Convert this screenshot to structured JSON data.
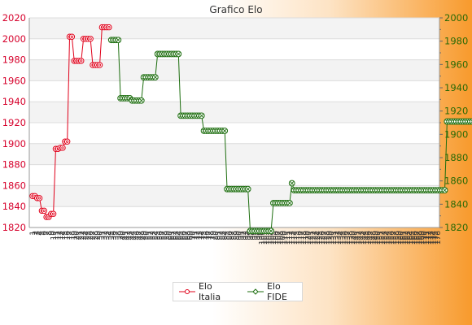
{
  "chart_data": {
    "type": "line",
    "title": "Grafico Elo",
    "y_left": {
      "min": 1820,
      "max": 2020,
      "step": 20
    },
    "y_right": {
      "min": 1820,
      "max": 2000,
      "step": 20
    },
    "x_labels": [
      "1",
      "2",
      "3",
      "4",
      "5",
      "6",
      "7",
      "8",
      "9",
      "10",
      "11",
      "12",
      "13",
      "14",
      "15",
      "16",
      "17",
      "18",
      "19",
      "20",
      "21",
      "22",
      "23",
      "24",
      "25",
      "26",
      "27",
      "28",
      "29",
      "30",
      "31",
      "32",
      "33",
      "34",
      "35",
      "36",
      "37",
      "38",
      "39",
      "40",
      "41",
      "42",
      "43",
      "44",
      "45",
      "46",
      "47",
      "48",
      "49",
      "50",
      "51",
      "52",
      "53",
      "54",
      "55",
      "56",
      "57",
      "58",
      "59",
      "60",
      "61",
      "62",
      "63",
      "64",
      "65",
      "66",
      "67",
      "68",
      "69",
      "70",
      "71",
      "72",
      "73",
      "74",
      "75",
      "76",
      "77",
      "78",
      "79",
      "80",
      "81",
      "82",
      "83",
      "84",
      "85",
      "86",
      "87",
      "88",
      "89",
      "90",
      "91",
      "92",
      "93",
      "94",
      "95",
      "96",
      "97",
      "98",
      "99",
      "100",
      "101",
      "102",
      "103",
      "104",
      "105",
      "106",
      "107",
      "108",
      "109",
      "110",
      "111",
      "112",
      "113",
      "114",
      "115",
      "116",
      "117",
      "118",
      "119",
      "120",
      "121",
      "122",
      "123",
      "124",
      "125",
      "126",
      "127",
      "128",
      "129",
      "130",
      "131",
      "132",
      "133",
      "134",
      "135",
      "136",
      "137",
      "138",
      "139",
      "140",
      "141",
      "142",
      "143",
      "144",
      "145",
      "146",
      "147",
      "148",
      "149",
      "150",
      "151",
      "152",
      "153",
      "154",
      "155",
      "156",
      "157",
      "158",
      "159",
      "160",
      "161",
      "162",
      "163",
      "164",
      "165",
      "166",
      "167",
      "168",
      "169",
      "170",
      "171",
      "172",
      "173",
      "174",
      "175",
      "176"
    ],
    "grid": true,
    "legend": {
      "position": "bottom"
    },
    "series": [
      {
        "name": "Elo Italia",
        "axis": "left",
        "color": "#e0001a",
        "marker": "circle",
        "values": [
          1850,
          1850,
          1848,
          1848,
          1836,
          1836,
          1830,
          1830,
          1833,
          1833,
          1895,
          1895,
          1896,
          1896,
          1902,
          1902,
          2002,
          2002,
          1979,
          1979,
          1979,
          1979,
          2000,
          2000,
          2000,
          2000,
          1975,
          1975,
          1975,
          1975,
          2011,
          2011,
          2011,
          2011
        ]
      },
      {
        "name": "Elo FIDE",
        "axis": "right",
        "color": "#1d6e0f",
        "marker": "diamond",
        "start": 34,
        "values": [
          1981,
          1981,
          1981,
          1981,
          1931,
          1931,
          1931,
          1931,
          1931,
          1929,
          1929,
          1929,
          1929,
          1929,
          1949,
          1949,
          1949,
          1949,
          1949,
          1949,
          1969,
          1969,
          1969,
          1969,
          1969,
          1969,
          1969,
          1969,
          1969,
          1969,
          1916,
          1916,
          1916,
          1916,
          1916,
          1916,
          1916,
          1916,
          1916,
          1916,
          1903,
          1903,
          1903,
          1903,
          1903,
          1903,
          1903,
          1903,
          1903,
          1903,
          1853,
          1853,
          1853,
          1853,
          1853,
          1853,
          1853,
          1853,
          1853,
          1853,
          1817,
          1817,
          1817,
          1817,
          1817,
          1817,
          1817,
          1817,
          1817,
          1817,
          1841,
          1841,
          1841,
          1841,
          1841,
          1841,
          1841,
          1841,
          1858,
          1852,
          1852,
          1852,
          1852,
          1852,
          1852,
          1852,
          1852,
          1852,
          1852,
          1852,
          1852,
          1852,
          1852,
          1852,
          1852,
          1852,
          1852,
          1852,
          1852,
          1852,
          1852,
          1852,
          1852,
          1852,
          1852,
          1852,
          1852,
          1852,
          1852,
          1852,
          1852,
          1852,
          1852,
          1852,
          1852,
          1852,
          1852,
          1852,
          1852,
          1852,
          1852,
          1852,
          1852,
          1852,
          1852,
          1852,
          1852,
          1852,
          1852,
          1852,
          1852,
          1852,
          1852,
          1852,
          1852,
          1852,
          1852,
          1852,
          1852,
          1852,
          1852,
          1852,
          1852,
          1852,
          1852,
          1911,
          1911,
          1911,
          1911,
          1911,
          1911,
          1911,
          1911,
          1911,
          1911,
          1911,
          1911,
          1911,
          1911,
          1911,
          1919,
          1919,
          1919,
          1919,
          1919,
          1919,
          1919,
          1919,
          1919,
          1919,
          1919
        ]
      }
    ]
  }
}
